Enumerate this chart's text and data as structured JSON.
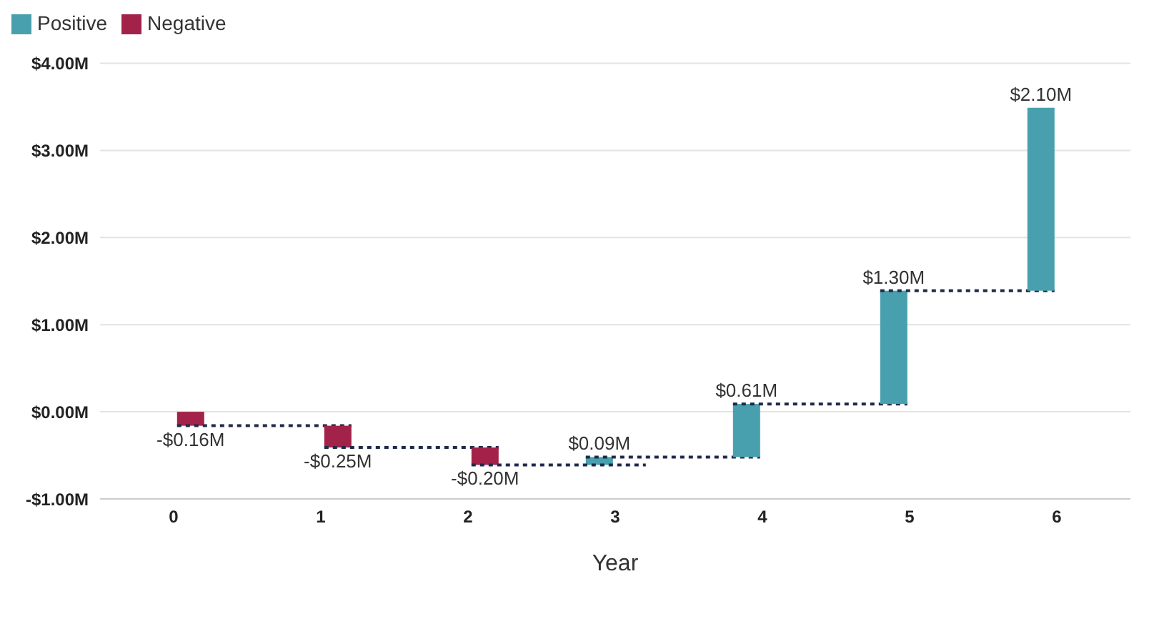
{
  "chart_data": {
    "type": "bar",
    "xlabel": "Year",
    "categories": [
      "0",
      "1",
      "2",
      "3",
      "4",
      "5",
      "6"
    ],
    "series": [
      {
        "name": "Positive",
        "color": "#48a0ae",
        "values": [
          null,
          null,
          null,
          0.09,
          0.61,
          1.3,
          2.1
        ],
        "base": [
          null,
          null,
          null,
          -0.61,
          -0.52,
          0.09,
          1.39
        ],
        "value_labels": [
          null,
          null,
          null,
          "$0.09M",
          "$0.61M",
          "$1.30M",
          "$2.10M"
        ]
      },
      {
        "name": "Negative",
        "color": "#a3224a",
        "values": [
          -0.16,
          -0.25,
          -0.2,
          null,
          null,
          null,
          null
        ],
        "base": [
          0,
          -0.16,
          -0.41,
          null,
          null,
          null,
          null
        ],
        "value_labels": [
          "-$0.16M",
          "-$0.25M",
          "-$0.20M",
          null,
          null,
          null,
          null
        ]
      }
    ],
    "ylim": [
      -1,
      4
    ],
    "yticks": [
      {
        "value": -1,
        "label": "-$1.00M"
      },
      {
        "value": 0,
        "label": "$0.00M"
      },
      {
        "value": 1,
        "label": "$1.00M"
      },
      {
        "value": 2,
        "label": "$2.00M"
      },
      {
        "value": 3,
        "label": "$3.00M"
      },
      {
        "value": 4,
        "label": "$4.00M"
      }
    ],
    "grid": "y",
    "legend": "top left"
  }
}
